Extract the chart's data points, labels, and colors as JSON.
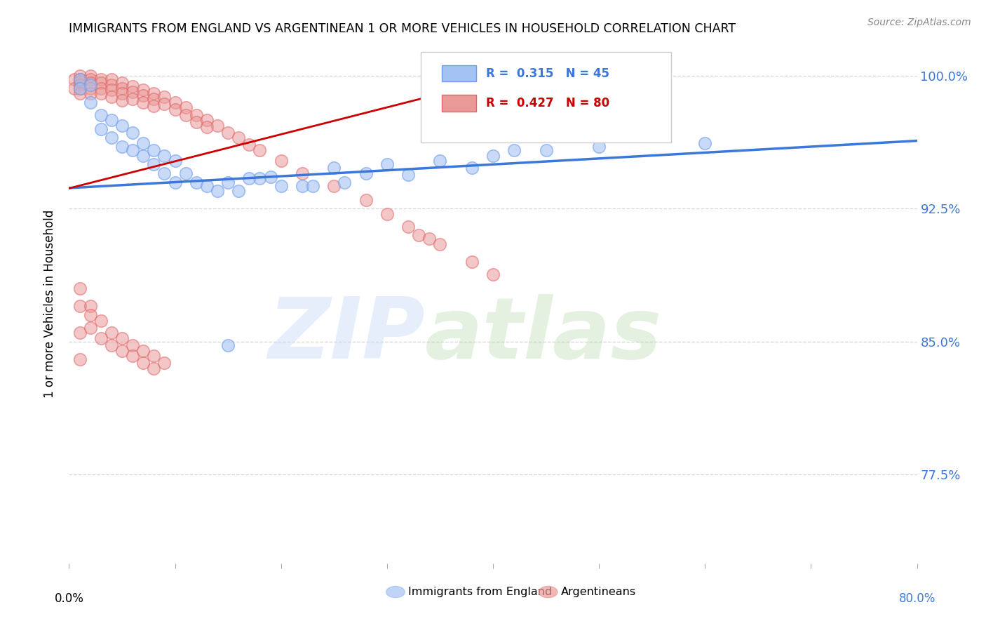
{
  "title": "IMMIGRANTS FROM ENGLAND VS ARGENTINEAN 1 OR MORE VEHICLES IN HOUSEHOLD CORRELATION CHART",
  "source": "Source: ZipAtlas.com",
  "ylabel": "1 or more Vehicles in Household",
  "legend_label_blue": "Immigrants from England",
  "legend_label_pink": "Argentineans",
  "legend_R_blue": "R =  0.315",
  "legend_N_blue": "N = 45",
  "legend_R_pink": "R =  0.427",
  "legend_N_pink": "N = 80",
  "watermark_zip": "ZIP",
  "watermark_atlas": "atlas",
  "blue_color": "#a4c2f4",
  "blue_edge_color": "#6d9eeb",
  "pink_color": "#ea9999",
  "pink_edge_color": "#e06666",
  "blue_line_color": "#3c78d8",
  "pink_line_color": "#cc0000",
  "xlim": [
    0.0,
    0.08
  ],
  "ylim": [
    0.725,
    1.018
  ],
  "yticks": [
    0.775,
    0.85,
    0.925,
    1.0
  ],
  "ytick_labels": [
    "77.5%",
    "85.0%",
    "92.5%",
    "100.0%"
  ],
  "xtick_positions": [
    0.0,
    0.01,
    0.02,
    0.03,
    0.04,
    0.05,
    0.06,
    0.07,
    0.08
  ],
  "blue_scatter_x": [
    0.001,
    0.001,
    0.002,
    0.002,
    0.003,
    0.003,
    0.004,
    0.004,
    0.005,
    0.005,
    0.006,
    0.006,
    0.007,
    0.007,
    0.008,
    0.008,
    0.009,
    0.009,
    0.01,
    0.01,
    0.011,
    0.012,
    0.013,
    0.014,
    0.015,
    0.016,
    0.018,
    0.02,
    0.025,
    0.028,
    0.03,
    0.035,
    0.04,
    0.045,
    0.05,
    0.06,
    0.038,
    0.022,
    0.017,
    0.019,
    0.023,
    0.026,
    0.032,
    0.042,
    0.015
  ],
  "blue_scatter_y": [
    0.998,
    0.993,
    0.995,
    0.985,
    0.978,
    0.97,
    0.975,
    0.965,
    0.972,
    0.96,
    0.968,
    0.958,
    0.962,
    0.955,
    0.958,
    0.95,
    0.955,
    0.945,
    0.952,
    0.94,
    0.945,
    0.94,
    0.938,
    0.935,
    0.94,
    0.935,
    0.942,
    0.938,
    0.948,
    0.945,
    0.95,
    0.952,
    0.955,
    0.958,
    0.96,
    0.962,
    0.948,
    0.938,
    0.942,
    0.943,
    0.938,
    0.94,
    0.944,
    0.958,
    0.848
  ],
  "pink_scatter_x": [
    0.0005,
    0.0005,
    0.001,
    0.001,
    0.001,
    0.001,
    0.001,
    0.001,
    0.002,
    0.002,
    0.002,
    0.002,
    0.002,
    0.003,
    0.003,
    0.003,
    0.003,
    0.004,
    0.004,
    0.004,
    0.004,
    0.005,
    0.005,
    0.005,
    0.005,
    0.006,
    0.006,
    0.006,
    0.007,
    0.007,
    0.007,
    0.008,
    0.008,
    0.008,
    0.009,
    0.009,
    0.01,
    0.01,
    0.011,
    0.011,
    0.012,
    0.012,
    0.013,
    0.013,
    0.014,
    0.015,
    0.016,
    0.017,
    0.018,
    0.02,
    0.022,
    0.025,
    0.028,
    0.03,
    0.032,
    0.033,
    0.034,
    0.035,
    0.038,
    0.04,
    0.001,
    0.001,
    0.001,
    0.001,
    0.002,
    0.002,
    0.002,
    0.003,
    0.003,
    0.004,
    0.004,
    0.005,
    0.005,
    0.006,
    0.006,
    0.007,
    0.007,
    0.008,
    0.008,
    0.009
  ],
  "pink_scatter_y": [
    0.998,
    0.993,
    1.0,
    0.998,
    0.997,
    0.995,
    0.993,
    0.99,
    1.0,
    0.998,
    0.996,
    0.993,
    0.99,
    0.998,
    0.996,
    0.993,
    0.99,
    0.998,
    0.995,
    0.992,
    0.988,
    0.996,
    0.993,
    0.99,
    0.986,
    0.994,
    0.991,
    0.987,
    0.992,
    0.989,
    0.985,
    0.99,
    0.987,
    0.983,
    0.988,
    0.984,
    0.985,
    0.981,
    0.982,
    0.978,
    0.978,
    0.974,
    0.975,
    0.971,
    0.972,
    0.968,
    0.965,
    0.961,
    0.958,
    0.952,
    0.945,
    0.938,
    0.93,
    0.922,
    0.915,
    0.91,
    0.908,
    0.905,
    0.895,
    0.888,
    0.88,
    0.87,
    0.855,
    0.84,
    0.87,
    0.865,
    0.858,
    0.862,
    0.852,
    0.855,
    0.848,
    0.852,
    0.845,
    0.848,
    0.842,
    0.845,
    0.838,
    0.842,
    0.835,
    0.838
  ],
  "blue_line_x": [
    -0.002,
    0.085
  ],
  "blue_line_y": [
    0.936,
    0.965
  ],
  "pink_line_x": [
    -0.001,
    0.045
  ],
  "pink_line_y": [
    0.935,
    1.005
  ]
}
